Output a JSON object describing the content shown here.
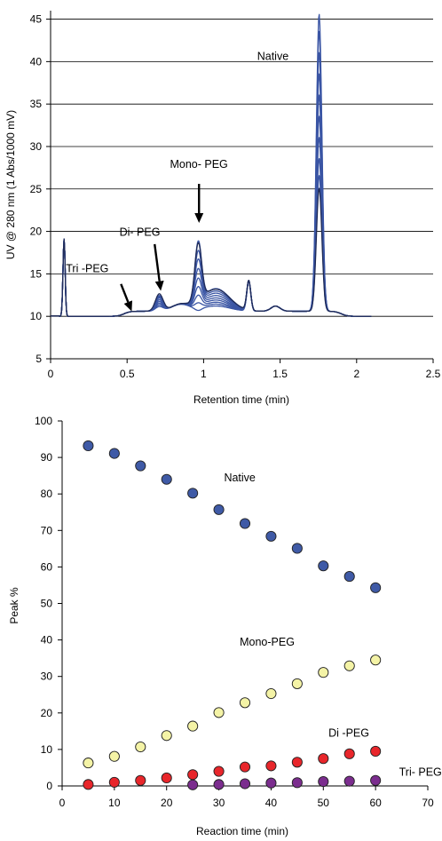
{
  "chart_data": [
    {
      "type": "line",
      "title": "",
      "xlabel": "Retention time (min)",
      "ylabel": "UV @ 280 nm (1 Abs/1000 mV)",
      "xlim": [
        0,
        2.5
      ],
      "ylim": [
        5,
        46
      ],
      "xticks": [
        "0",
        "0.5",
        "1",
        "1.5",
        "2",
        "2.5"
      ],
      "yticks": [
        "5",
        "10",
        "15",
        "20",
        "25",
        "30",
        "35",
        "40",
        "45"
      ],
      "x_tick_values": [
        0,
        0.5,
        1,
        1.5,
        2,
        2.5
      ],
      "y_tick_values": [
        5,
        10,
        15,
        20,
        25,
        30,
        35,
        40,
        45
      ],
      "color": "#3a55a4",
      "series": [
        {
          "mono_peak": 19.5,
          "native_peak": 46.5,
          "di_peak": 12.4
        },
        {
          "mono_peak": 18.5,
          "native_peak": 44.5,
          "di_peak": 12.3
        },
        {
          "mono_peak": 17.6,
          "native_peak": 42.0,
          "di_peak": 12.2
        },
        {
          "mono_peak": 16.6,
          "native_peak": 39.5,
          "di_peak": 12.1
        },
        {
          "mono_peak": 15.6,
          "native_peak": 37.0,
          "di_peak": 11.9
        },
        {
          "mono_peak": 14.7,
          "native_peak": 34.5,
          "di_peak": 11.7
        },
        {
          "mono_peak": 13.8,
          "native_peak": 32.0,
          "di_peak": 11.5
        },
        {
          "mono_peak": 13.0,
          "native_peak": 29.5,
          "di_peak": 11.3
        },
        {
          "mono_peak": 12.2,
          "native_peak": 27.5,
          "di_peak": 11.1
        },
        {
          "mono_peak": 19.3,
          "native_peak": 26.0,
          "di_peak": 12.6
        }
      ],
      "annotations": [
        {
          "text": "Native",
          "x": 1.35,
          "y": 40.2
        },
        {
          "text": "Mono- PEG",
          "x": 0.78,
          "y": 27.5
        },
        {
          "text": "Di- PEG",
          "x": 0.45,
          "y": 19.5
        },
        {
          "text": "Tri -PEG",
          "x": 0.1,
          "y": 15.2
        }
      ],
      "arrows": [
        {
          "from": [
            0.97,
            25.6
          ],
          "to": [
            0.97,
            21.0
          ]
        },
        {
          "from": [
            0.68,
            18.5
          ],
          "to": [
            0.72,
            13.0
          ]
        },
        {
          "from": [
            0.46,
            13.8
          ],
          "to": [
            0.53,
            10.6
          ]
        }
      ]
    },
    {
      "type": "scatter",
      "title": "",
      "xlabel": "Reaction time (min)",
      "ylabel": "Peak %",
      "xlim": [
        0,
        70
      ],
      "ylim": [
        0,
        100
      ],
      "xticks": [
        "0",
        "10",
        "20",
        "30",
        "40",
        "50",
        "60",
        "70"
      ],
      "yticks": [
        "0",
        "10",
        "20",
        "30",
        "40",
        "50",
        "60",
        "70",
        "80",
        "90",
        "100"
      ],
      "x_tick_values": [
        0,
        10,
        20,
        30,
        40,
        50,
        60,
        70
      ],
      "y_tick_values": [
        0,
        10,
        20,
        30,
        40,
        50,
        60,
        70,
        80,
        90,
        100
      ],
      "grid": false,
      "series": [
        {
          "name": "Native",
          "color": "#3f5aa6",
          "x": [
            5,
            10,
            15,
            20,
            25,
            30,
            35,
            40,
            45,
            50,
            55,
            60
          ],
          "y": [
            93.2,
            91.1,
            87.7,
            84.0,
            80.2,
            75.7,
            71.9,
            68.4,
            65.1,
            60.3,
            57.4,
            54.3
          ]
        },
        {
          "name": "Mono-PEG",
          "color": "#f4f3a6",
          "x": [
            5,
            10,
            15,
            20,
            25,
            30,
            35,
            40,
            45,
            50,
            55,
            60
          ],
          "y": [
            6.3,
            8.1,
            10.7,
            13.8,
            16.4,
            20.1,
            22.8,
            25.3,
            28.0,
            31.1,
            32.9,
            34.5
          ]
        },
        {
          "name": "Di -PEG",
          "color": "#e8262b",
          "x": [
            5,
            10,
            15,
            20,
            25,
            30,
            35,
            40,
            45,
            50,
            55,
            60
          ],
          "y": [
            0.4,
            1.0,
            1.5,
            2.2,
            3.1,
            4.0,
            5.2,
            5.5,
            6.5,
            7.5,
            8.8,
            9.5
          ]
        },
        {
          "name": "Tri- PEG",
          "color": "#7b2d8e",
          "x": [
            25,
            30,
            35,
            40,
            45,
            50,
            55,
            60
          ],
          "y": [
            0.3,
            0.4,
            0.6,
            0.8,
            0.9,
            1.2,
            1.3,
            1.5
          ]
        }
      ],
      "annotations": [
        {
          "text": "Native",
          "x": 31,
          "y": 83.5
        },
        {
          "text": "Mono-PEG",
          "x": 34,
          "y": 38.5
        },
        {
          "text": "Di -PEG",
          "x": 51,
          "y": 13.5
        },
        {
          "text": "Tri- PEG",
          "x": 64.5,
          "y": 2.8
        }
      ]
    }
  ]
}
